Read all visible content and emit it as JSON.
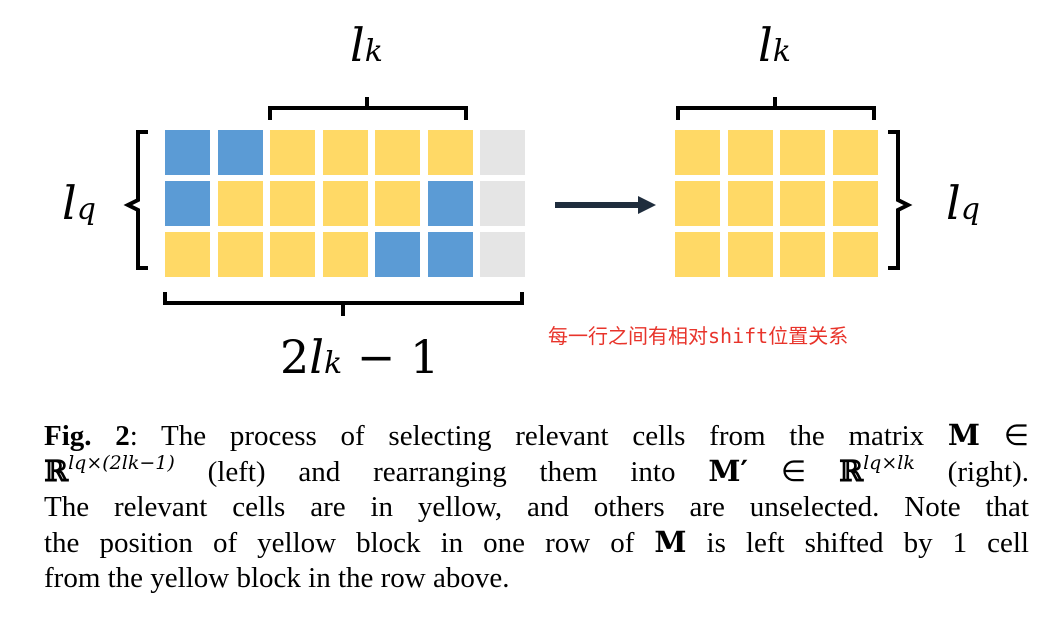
{
  "figure": {
    "left_matrix": {
      "top_brace_label": {
        "base": "l",
        "sub": "k"
      },
      "side_brace_label": {
        "base": "l",
        "sub": "q"
      },
      "bottom_brace_label": {
        "prefix": "2",
        "base": "l",
        "sub": "k",
        "suffix": " − 1"
      },
      "rows": [
        [
          "blue",
          "blue",
          "yellow",
          "yellow",
          "yellow",
          "yellow",
          "gray"
        ],
        [
          "blue",
          "yellow",
          "yellow",
          "yellow",
          "yellow",
          "blue",
          "gray"
        ],
        [
          "yellow",
          "yellow",
          "yellow",
          "yellow",
          "blue",
          "blue",
          "gray"
        ]
      ]
    },
    "right_matrix": {
      "top_brace_label": {
        "base": "l",
        "sub": "k"
      },
      "side_brace_label": {
        "base": "l",
        "sub": "q"
      },
      "rows": [
        [
          "yellow",
          "yellow",
          "yellow",
          "yellow"
        ],
        [
          "yellow",
          "yellow",
          "yellow",
          "yellow"
        ],
        [
          "yellow",
          "yellow",
          "yellow",
          "yellow"
        ]
      ]
    },
    "annotation": "每一行之间有相对shift位置关系",
    "colors": {
      "yellow": "#FFD966",
      "blue": "#5B9BD5",
      "gray": "#E5E5E5",
      "arrow": "#1F2D3D",
      "annotation": "#E8342B"
    }
  },
  "caption": {
    "fig_label": "Fig. 2",
    "line1_text": ": The process of selecting relevant cells from the matrix ",
    "matrix_M": "M",
    "in_symbol": "∈",
    "real_symbol": "ℝ",
    "sup_left": "lq×(2lk−1)",
    "line2_mid": " (left) and rearranging them into ",
    "matrix_Mprime": "M′",
    "sup_right": "lq×lk",
    "line2_end": " (right).",
    "line3": "The relevant cells are in yellow, and others are unselected. Note that",
    "line4_a": "the position of yellow block in one row of ",
    "line4_b": " is left shifted by 1 cell",
    "line5": "from the yellow block in the row above."
  }
}
